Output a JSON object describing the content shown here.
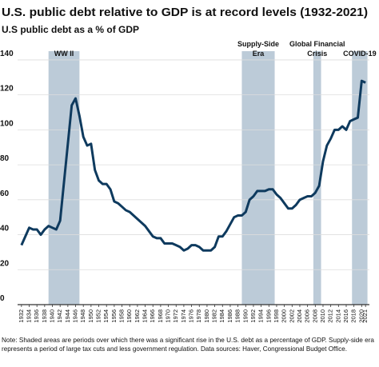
{
  "chart_data": {
    "type": "line",
    "title": "U.S. public debt relative to GDP is at record levels (1932-2021)",
    "subtitle": "U.S public debt as a % of GDP",
    "note_lines": [
      "Note: Shaded areas are periods over which there was a significant rise in the U.S. debt as a percentage of GDP. Supply-side era",
      "represents a period of large tax cuts and less government regulation. Data sources: Haver, Congressional Budget Office."
    ],
    "x": [
      1932,
      1933,
      1934,
      1935,
      1936,
      1937,
      1938,
      1939,
      1940,
      1941,
      1942,
      1943,
      1944,
      1945,
      1946,
      1947,
      1948,
      1949,
      1950,
      1951,
      1952,
      1953,
      1954,
      1955,
      1956,
      1957,
      1958,
      1959,
      1960,
      1961,
      1962,
      1963,
      1964,
      1965,
      1966,
      1967,
      1968,
      1969,
      1970,
      1971,
      1972,
      1973,
      1974,
      1975,
      1976,
      1977,
      1978,
      1979,
      1980,
      1981,
      1982,
      1983,
      1984,
      1985,
      1986,
      1987,
      1988,
      1989,
      1990,
      1991,
      1992,
      1993,
      1994,
      1995,
      1996,
      1997,
      1998,
      1999,
      2000,
      2001,
      2002,
      2003,
      2004,
      2005,
      2006,
      2007,
      2008,
      2009,
      2010,
      2011,
      2012,
      2013,
      2014,
      2015,
      2016,
      2017,
      2018,
      2019,
      2020,
      2021
    ],
    "series": [
      {
        "name": "U.S public debt as a % of GDP",
        "color": "#0e3a5e",
        "values": [
          34,
          39,
          44,
          43,
          43,
          40,
          43,
          45,
          44,
          43,
          48,
          70,
          92,
          114,
          118,
          108,
          96,
          91,
          92,
          77,
          71,
          69,
          69,
          66,
          59,
          58,
          56,
          54,
          53,
          51,
          49,
          47,
          45,
          42,
          39,
          38,
          38,
          35,
          35,
          35,
          34,
          33,
          31,
          32,
          34,
          34,
          33,
          31,
          31,
          31,
          33,
          39,
          39,
          42,
          46,
          50,
          51,
          51,
          53,
          60,
          62,
          65,
          65,
          65,
          66,
          66,
          63,
          61,
          58,
          55,
          55,
          57,
          60,
          61,
          62,
          62,
          64,
          68,
          82,
          91,
          95,
          100,
          100,
          102,
          100,
          105,
          106,
          107,
          128,
          127
        ]
      }
    ],
    "shaded_periods": [
      {
        "label_lines": [
          "WW II"
        ],
        "start": 1939,
        "end": 1947
      },
      {
        "label_lines": [
          "Supply-Side",
          "Era"
        ],
        "start": 1989,
        "end": 1997.5
      },
      {
        "label_lines": [
          "Global Financial",
          "Crisis"
        ],
        "start": 2007.5,
        "end": 2009.5
      },
      {
        "label_lines": [
          "COVID-19"
        ],
        "start": 2017.5,
        "end": 2021.5
      }
    ],
    "shade_color": "#bccbd8",
    "xlim": [
      1931,
      2022
    ],
    "xticks": [
      1932,
      1934,
      1936,
      1938,
      1940,
      1942,
      1944,
      1946,
      1948,
      1950,
      1952,
      1954,
      1956,
      1958,
      1960,
      1962,
      1964,
      1966,
      1968,
      1970,
      1972,
      1974,
      1976,
      1978,
      1980,
      1982,
      1984,
      1986,
      1988,
      1990,
      1992,
      1994,
      1996,
      1998,
      2000,
      2002,
      2004,
      2006,
      2008,
      2010,
      2012,
      2014,
      2016,
      2018,
      2020,
      2021
    ],
    "ylim": [
      0,
      145
    ],
    "yticks": [
      0,
      20,
      40,
      60,
      80,
      100,
      120,
      140
    ],
    "grid": true
  }
}
